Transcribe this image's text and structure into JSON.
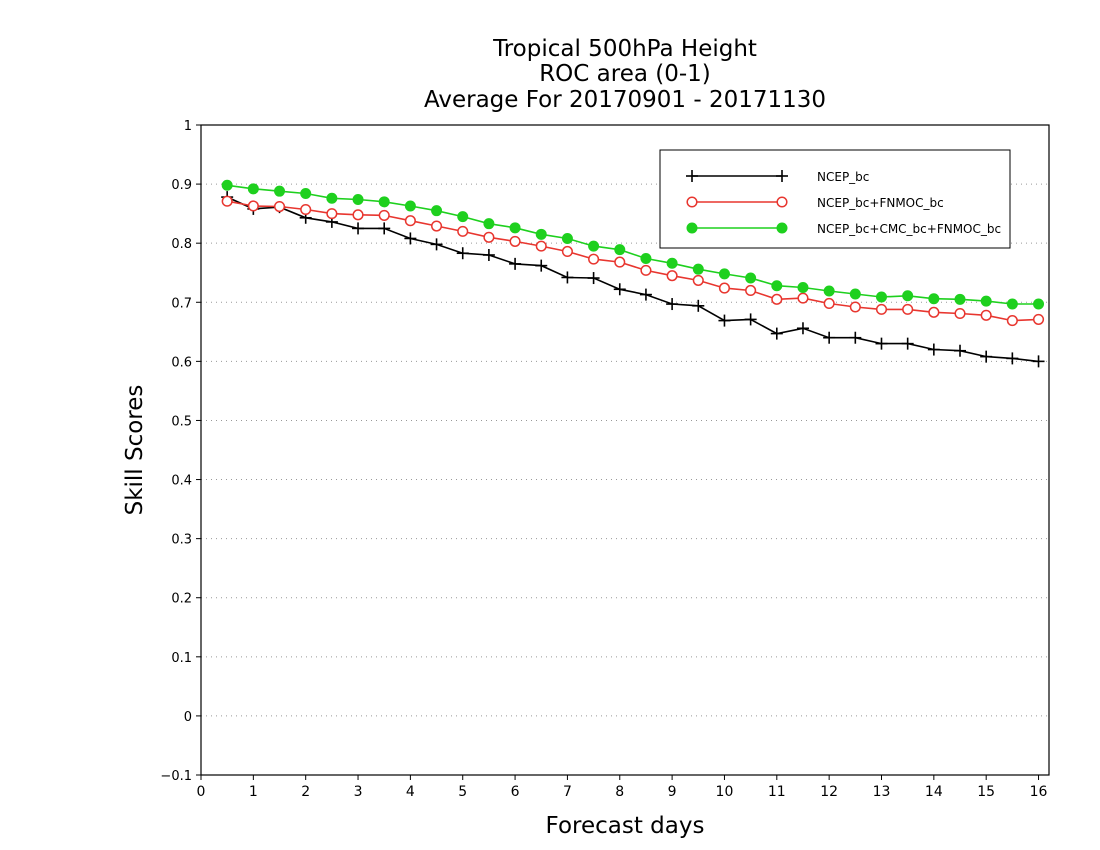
{
  "chart_data": {
    "type": "line",
    "title": [
      "Tropical 500hPa Height",
      "ROC area (0-1)",
      "Average For 20170901 - 20171130"
    ],
    "xlabel": "Forecast days",
    "ylabel": "Skill Scores",
    "xlim": [
      0,
      16.2
    ],
    "ylim": [
      -0.1,
      1
    ],
    "xticks": [
      "0",
      "1",
      "2",
      "3",
      "4",
      "5",
      "6",
      "7",
      "8",
      "9",
      "10",
      "11",
      "12",
      "13",
      "14",
      "15",
      "16"
    ],
    "yticks": [
      "−0.1",
      "0",
      "0.1",
      "0.2",
      "0.3",
      "0.4",
      "0.5",
      "0.6",
      "0.7",
      "0.8",
      "0.9",
      "1"
    ],
    "grid": "horizontal-dotted",
    "legend_position": "top-right",
    "x": [
      0.5,
      1,
      1.5,
      2,
      2.5,
      3,
      3.5,
      4,
      4.5,
      5,
      5.5,
      6,
      6.5,
      7,
      7.5,
      8,
      8.5,
      9,
      9.5,
      10,
      10.5,
      11,
      11.5,
      12,
      12.5,
      13,
      13.5,
      14,
      14.5,
      15,
      15.5,
      16
    ],
    "series": [
      {
        "name": "NCEP_bc",
        "color": "#000000",
        "marker": "plus",
        "values": [
          0.878,
          0.858,
          0.861,
          0.843,
          0.836,
          0.825,
          0.825,
          0.808,
          0.798,
          0.783,
          0.78,
          0.765,
          0.762,
          0.742,
          0.741,
          0.722,
          0.713,
          0.697,
          0.694,
          0.669,
          0.671,
          0.647,
          0.656,
          0.64,
          0.64,
          0.63,
          0.63,
          0.62,
          0.618,
          0.608,
          0.605,
          0.6
        ]
      },
      {
        "name": "NCEP_bc+FNMOC_bc",
        "color": "#e8362f",
        "marker": "open-circle",
        "values": [
          0.871,
          0.863,
          0.862,
          0.857,
          0.85,
          0.848,
          0.847,
          0.838,
          0.829,
          0.82,
          0.81,
          0.803,
          0.795,
          0.786,
          0.773,
          0.768,
          0.754,
          0.745,
          0.737,
          0.724,
          0.72,
          0.705,
          0.707,
          0.698,
          0.692,
          0.688,
          0.688,
          0.683,
          0.681,
          0.678,
          0.669,
          0.671
        ]
      },
      {
        "name": "NCEP_bc+CMC_bc+FNMOC_bc",
        "color": "#1ed01e",
        "marker": "filled-circle",
        "values": [
          0.898,
          0.892,
          0.888,
          0.884,
          0.876,
          0.874,
          0.87,
          0.863,
          0.855,
          0.845,
          0.833,
          0.826,
          0.815,
          0.808,
          0.795,
          0.789,
          0.774,
          0.766,
          0.756,
          0.748,
          0.741,
          0.728,
          0.725,
          0.719,
          0.714,
          0.709,
          0.711,
          0.706,
          0.705,
          0.702,
          0.697,
          0.697
        ]
      }
    ]
  }
}
